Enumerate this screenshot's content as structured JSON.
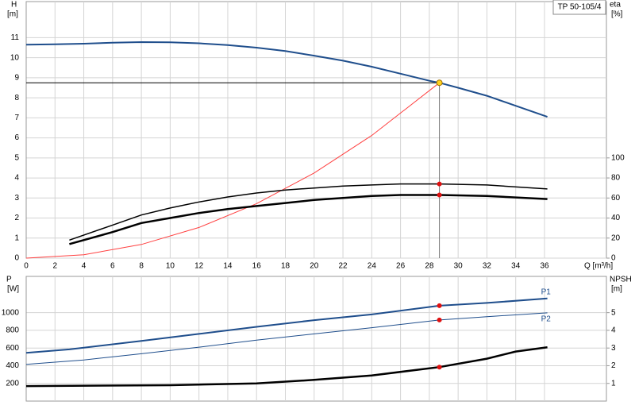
{
  "chart_data": [
    {
      "type": "line",
      "legend_box": "TP 50-105/4",
      "y_label": "H",
      "y_unit": "[m]",
      "y2_label": "eta",
      "y2_unit": "[%]",
      "x_label": "Q [m³/h]",
      "xlim": [
        0,
        40.3
      ],
      "xticks": [
        0,
        2,
        4,
        6,
        8,
        10,
        12,
        14,
        16,
        18,
        20,
        22,
        24,
        26,
        28,
        30,
        32,
        34,
        36
      ],
      "ylim": [
        0,
        12.8
      ],
      "yticks": [
        0,
        1,
        2,
        3,
        4,
        5,
        6,
        7,
        8,
        9,
        10,
        11
      ],
      "y2lim": [
        0,
        256
      ],
      "y2ticks": [
        0,
        20,
        40,
        60,
        80,
        100
      ],
      "grid": true,
      "operating_point": {
        "x": 28.7,
        "y": 8.75
      },
      "highlight_x": 28.7,
      "series": [
        {
          "color": "#1f4e8c",
          "width": 2,
          "x": [
            0,
            2,
            4,
            6,
            8,
            10,
            12,
            14,
            16,
            18,
            20,
            22,
            24,
            26,
            28,
            28.7,
            30,
            32,
            34,
            36.2
          ],
          "values": [
            10.65,
            10.67,
            10.7,
            10.75,
            10.78,
            10.77,
            10.72,
            10.63,
            10.5,
            10.33,
            10.1,
            9.85,
            9.55,
            9.2,
            8.85,
            8.75,
            8.5,
            8.1,
            7.6,
            7.05
          ]
        },
        {
          "color": "#ff4040",
          "width": 1,
          "x": [
            0,
            4,
            8,
            12,
            16,
            20,
            24,
            28.7
          ],
          "values": [
            0,
            0.17,
            0.68,
            1.53,
            2.72,
            4.25,
            6.12,
            8.75
          ]
        },
        {
          "color": "#000000",
          "width": 1.5,
          "axis": "y2",
          "x": [
            3,
            6,
            8,
            10,
            12,
            14,
            16,
            18,
            20,
            22,
            24,
            26,
            28.7,
            32,
            36.2
          ],
          "values": [
            18,
            33,
            43,
            50,
            56,
            61,
            65,
            68,
            70,
            72,
            73,
            74,
            74,
            73,
            69
          ]
        },
        {
          "color": "#000000",
          "width": 2.5,
          "axis": "y2",
          "x": [
            3,
            6,
            8,
            10,
            12,
            14,
            16,
            18,
            20,
            22,
            24,
            26,
            28.7,
            32,
            36.2
          ],
          "values": [
            14,
            26,
            35,
            40,
            45,
            49,
            52,
            55,
            58,
            60,
            62,
            63,
            63,
            62,
            59
          ]
        }
      ]
    },
    {
      "type": "line",
      "y_label": "P",
      "y_unit": "[W]",
      "y2_label": "NPSH",
      "y2_unit": "[m]",
      "xlim": [
        0,
        40.3
      ],
      "xticks": [
        0,
        2,
        4,
        6,
        8,
        10,
        12,
        14,
        16,
        18,
        20,
        22,
        24,
        26,
        28,
        30,
        32,
        34,
        36
      ],
      "xtick_labels": false,
      "ylim": [
        0,
        1410
      ],
      "yticks": [
        200,
        400,
        600,
        800,
        1000
      ],
      "y2lim": [
        0,
        7.05
      ],
      "y2ticks": [
        1,
        2,
        3,
        4,
        5
      ],
      "grid": true,
      "highlight_x": 28.7,
      "series": [
        {
          "name": "P1",
          "color": "#1f4e8c",
          "width": 2,
          "x": [
            0,
            3,
            8,
            12,
            16,
            20,
            24,
            28.7,
            32,
            36.2
          ],
          "values": [
            545,
            585,
            680,
            760,
            840,
            915,
            980,
            1079,
            1110,
            1160
          ]
        },
        {
          "name": "P2",
          "color": "#1f4e8c",
          "width": 1,
          "x": [
            0,
            4,
            8,
            12,
            16,
            20,
            24,
            28.7,
            32,
            36.2
          ],
          "values": [
            415,
            465,
            535,
            610,
            690,
            760,
            830,
            917,
            955,
            998
          ]
        },
        {
          "color": "#000000",
          "width": 2.5,
          "axis": "y2",
          "x": [
            0,
            10,
            16,
            20,
            24,
            28.7,
            32,
            34,
            36.2
          ],
          "values": [
            0.85,
            0.9,
            1.0,
            1.2,
            1.45,
            1.92,
            2.4,
            2.8,
            3.04
          ]
        }
      ]
    }
  ]
}
